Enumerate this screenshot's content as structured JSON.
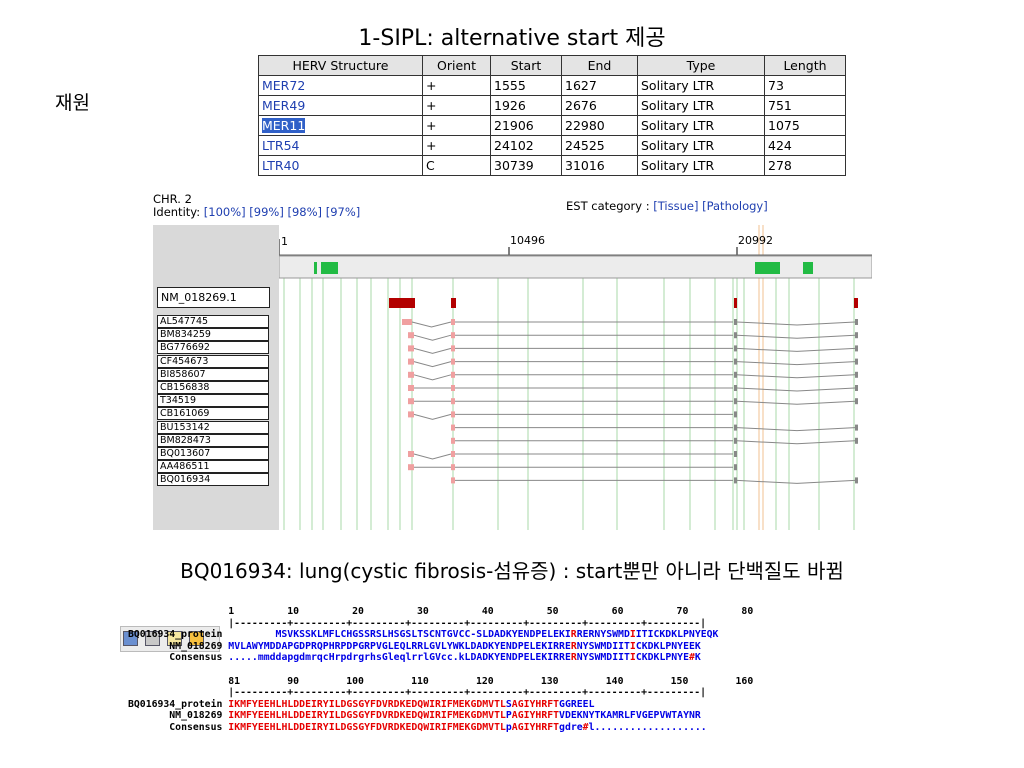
{
  "title": "1-SIPL: alternative start 제공",
  "side_label": "재원",
  "herv_table": {
    "headers": [
      "HERV Structure",
      "Orient",
      "Start",
      "End",
      "Type",
      "Length"
    ],
    "rows": [
      [
        "MER72",
        "+",
        "1555",
        "1627",
        "Solitary LTR",
        "73"
      ],
      [
        "MER49",
        "+",
        "1926",
        "2676",
        "Solitary LTR",
        "751"
      ],
      [
        "MER11",
        "+",
        "21906",
        "22980",
        "Solitary LTR",
        "1075"
      ],
      [
        "LTR54",
        "+",
        "24102",
        "24525",
        "Solitary LTR",
        "424"
      ],
      [
        "LTR40",
        "C",
        "30739",
        "31016",
        "Solitary LTR",
        "278"
      ]
    ]
  },
  "genome_view": {
    "chr_label": "CHR. 2",
    "identity_label": "Identity:",
    "identity_options": [
      "[100%]",
      "[99%]",
      "[98%]",
      "[97%]"
    ],
    "est_label": "EST category :",
    "est_options": [
      "[Tissue]",
      "[Pathology]"
    ],
    "ruler": [
      "1",
      "10496",
      "20992"
    ],
    "reference": "NM_018269.1",
    "ests": [
      "AL547745",
      "BM834259",
      "BG776692",
      "CF454673",
      "BI858607",
      "CB156838",
      "T34519",
      "CB161069",
      "BU153142",
      "BM828473",
      "BQ013607",
      "AA486511",
      "BQ016934"
    ],
    "colors": {
      "exon_ref": "#b30000",
      "exon_est": "#f0a0a0",
      "herv": "#22bb44",
      "guide": "#a8d8a8",
      "highlight": "#f0c090"
    }
  },
  "subtitle": "BQ016934: lung(cystic fibrosis-섬유증) : start뿐만 아니라 단백질도 바뀜",
  "alignment": {
    "block1": {
      "scale": "1         10         20         30         40         50         60         70         80",
      "ruler": "|---------+---------+---------+---------+---------+---------+---------+---------|",
      "rows": [
        {
          "name": "BQ016934_protein",
          "seq": "        MSVKSSKLMFLCHGSSRSLHSGSLTSCNTGVCC-SLDADKYENDPELEKIRRERNYSWMDIITICKDKLPNYEQK"
        },
        {
          "name": "NM_018269",
          "seq": "MVLAWYMDDAPGDPRQPHRPDPGRPVGLEQLRRLGVLYWKLDADKYENDPELEKIRRERNYSWMDIITICKDKLPNYEEK"
        },
        {
          "name": "Consensus",
          "seq": ".....mmddapgdmrqcHrpdrgrhsGleqlrrlGVcc.kLDADKYENDPELEKIRRERNYSWMDIITICKDKLPNYE#K"
        }
      ]
    },
    "block2": {
      "scale": "81        90        100        110        120        130        140        150        160",
      "ruler": "|---------+---------+---------+---------+---------+---------+---------+---------|",
      "rows": [
        {
          "name": "BQ016934_protein",
          "seq": "IKMFYEEHLHLDDEIRYILDGSGYFDVRDKEDQWIRIFMEKGDMVTLSAGIYHRFTGGREEL"
        },
        {
          "name": "NM_018269",
          "seq": "IKMFYEEHLHLDDEIRYILDGSGYFDVRDKEDQWIRIFMEKGDMVTLPAGIYHRFTVDEKNYTKAMRLFVGEPVWTAYNR"
        },
        {
          "name": "Consensus",
          "seq": "IKMFYEEHLHLDDEIRYILDGSGYFDVRDKEDQWIRIFMEKGDMVTLpAGIYHRFTgdre#l..................."
        }
      ]
    }
  }
}
